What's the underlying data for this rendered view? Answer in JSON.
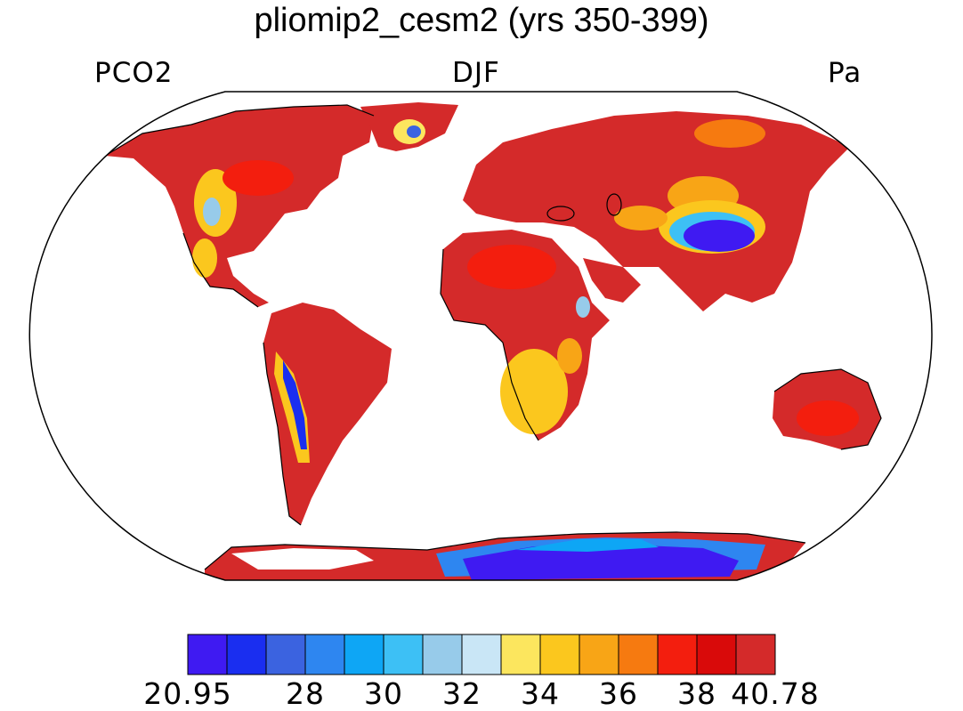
{
  "title": "pliomip2_cesm2 (yrs 350-399)",
  "left_label": "PCO2",
  "center_label": "DJF",
  "right_label": "Pa",
  "colorbar": {
    "colors": [
      "#3f1af2",
      "#1a2ef0",
      "#3b63e0",
      "#2e86f0",
      "#0ea6f5",
      "#3dc0f5",
      "#97cbea",
      "#c9e6f6",
      "#fce65e",
      "#fbc71e",
      "#f8a516",
      "#f67a10",
      "#f31e0e",
      "#d90a0a",
      "#d42a2a"
    ],
    "labels": [
      "20.95",
      "28",
      "30",
      "32",
      "34",
      "36",
      "38",
      "40.78"
    ]
  },
  "map": {
    "projection": "Robinson",
    "land_base_color": "#d42a2a",
    "ocean_color": "#ffffff"
  }
}
